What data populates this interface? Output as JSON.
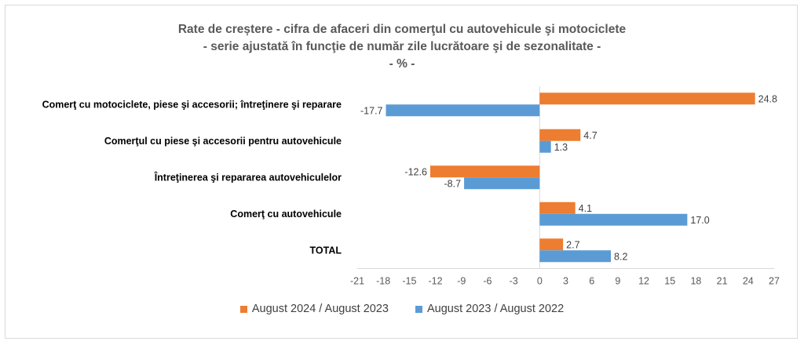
{
  "chart_data": {
    "type": "bar",
    "orientation": "horizontal",
    "title_lines": [
      "Rate de creștere - cifra de afaceri din comerţul cu autovehicule şi motociclete",
      "- serie ajustată în funcţie de număr zile lucrătoare şi de sezonalitate -",
      "- % -"
    ],
    "categories": [
      "Comerţ cu motociclete, piese şi accesorii; întreţinere şi reparare",
      "Comerţul cu piese şi accesorii pentru autovehicule",
      "Întreţinerea şi repararea autovehiculelor",
      "Comerţ cu autovehicule",
      "TOTAL"
    ],
    "series": [
      {
        "name": "August 2024 / August 2023",
        "color": "#ED7D31",
        "values": [
          24.8,
          4.7,
          -12.6,
          4.1,
          2.7
        ],
        "labels": [
          "24.8",
          "4.7",
          "-12.6",
          "4.1",
          "2.7"
        ]
      },
      {
        "name": "August 2023 / August 2022",
        "color": "#5B9BD5",
        "values": [
          -17.7,
          1.3,
          -8.7,
          17.0,
          8.2
        ],
        "labels": [
          "-17.7",
          "1.3",
          "-8.7",
          "17.0",
          "8.2"
        ]
      }
    ],
    "xlim": [
      -21,
      27
    ],
    "ticks": [
      "-21",
      "-18",
      "-15",
      "-12",
      "-9",
      "-6",
      "-3",
      "0",
      "3",
      "6",
      "9",
      "12",
      "15",
      "18",
      "21",
      "24",
      "27"
    ],
    "xlabel": "",
    "ylabel": "",
    "grid": false,
    "legend_position": "bottom"
  }
}
